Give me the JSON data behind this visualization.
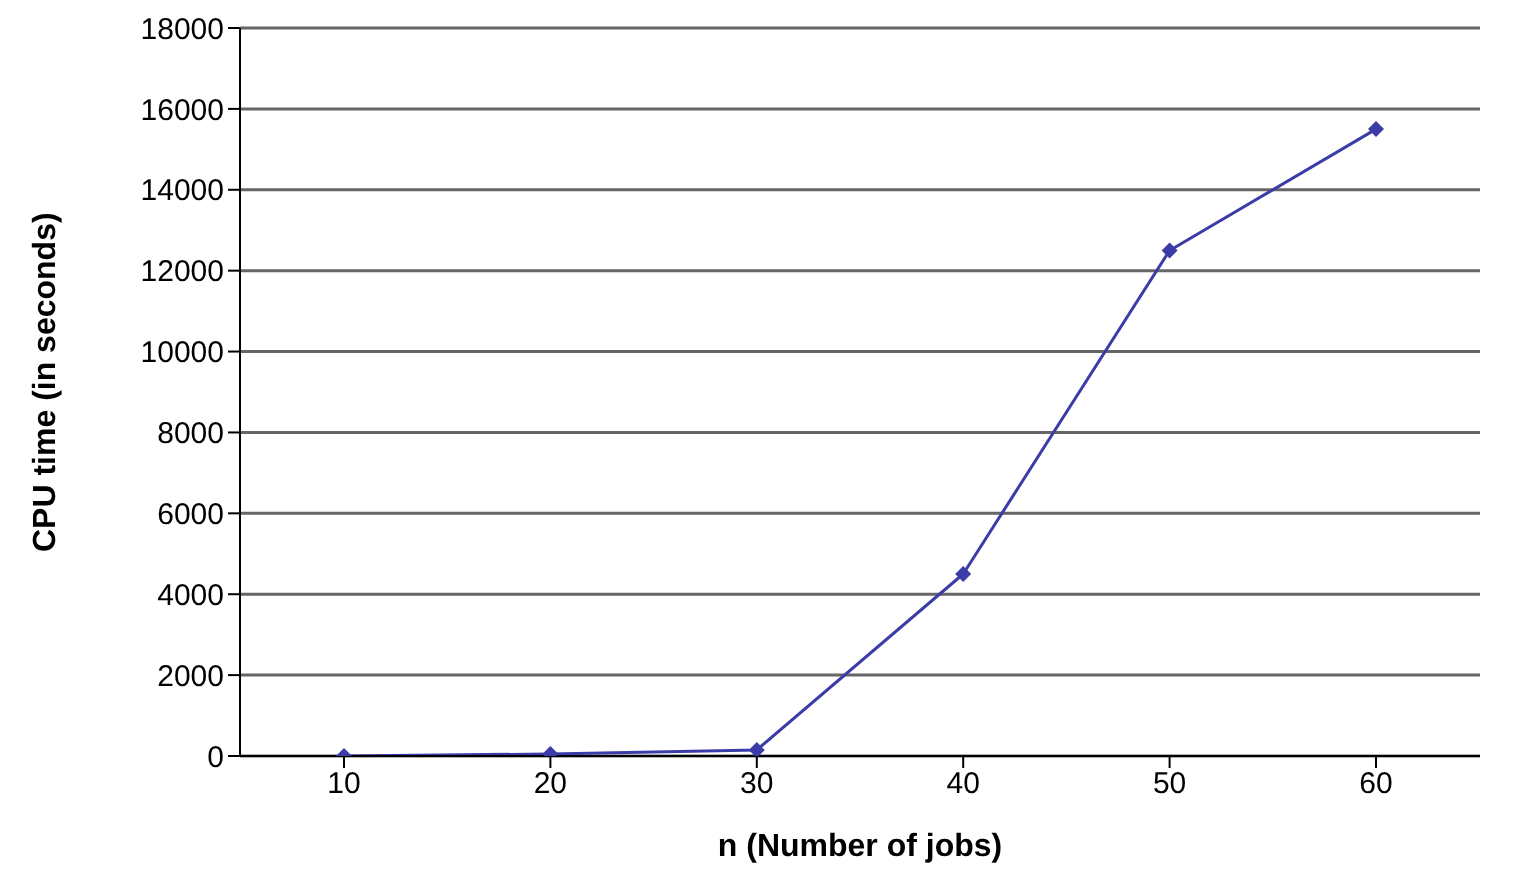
{
  "chart_data": {
    "type": "line",
    "xlabel": "n (Number of jobs)",
    "ylabel": "CPU time (in seconds)",
    "categories": [
      "10",
      "20",
      "30",
      "40",
      "50",
      "60"
    ],
    "series": [
      {
        "color": "#3c3ca8",
        "values": [
          0,
          50,
          150,
          4500,
          12500,
          15500
        ]
      }
    ],
    "ylim": [
      0,
      18000
    ],
    "yticks": [
      0,
      2000,
      4000,
      6000,
      8000,
      10000,
      12000,
      14000,
      16000,
      18000
    ],
    "grid": "y",
    "marker": "diamond",
    "line_style": "solid"
  }
}
